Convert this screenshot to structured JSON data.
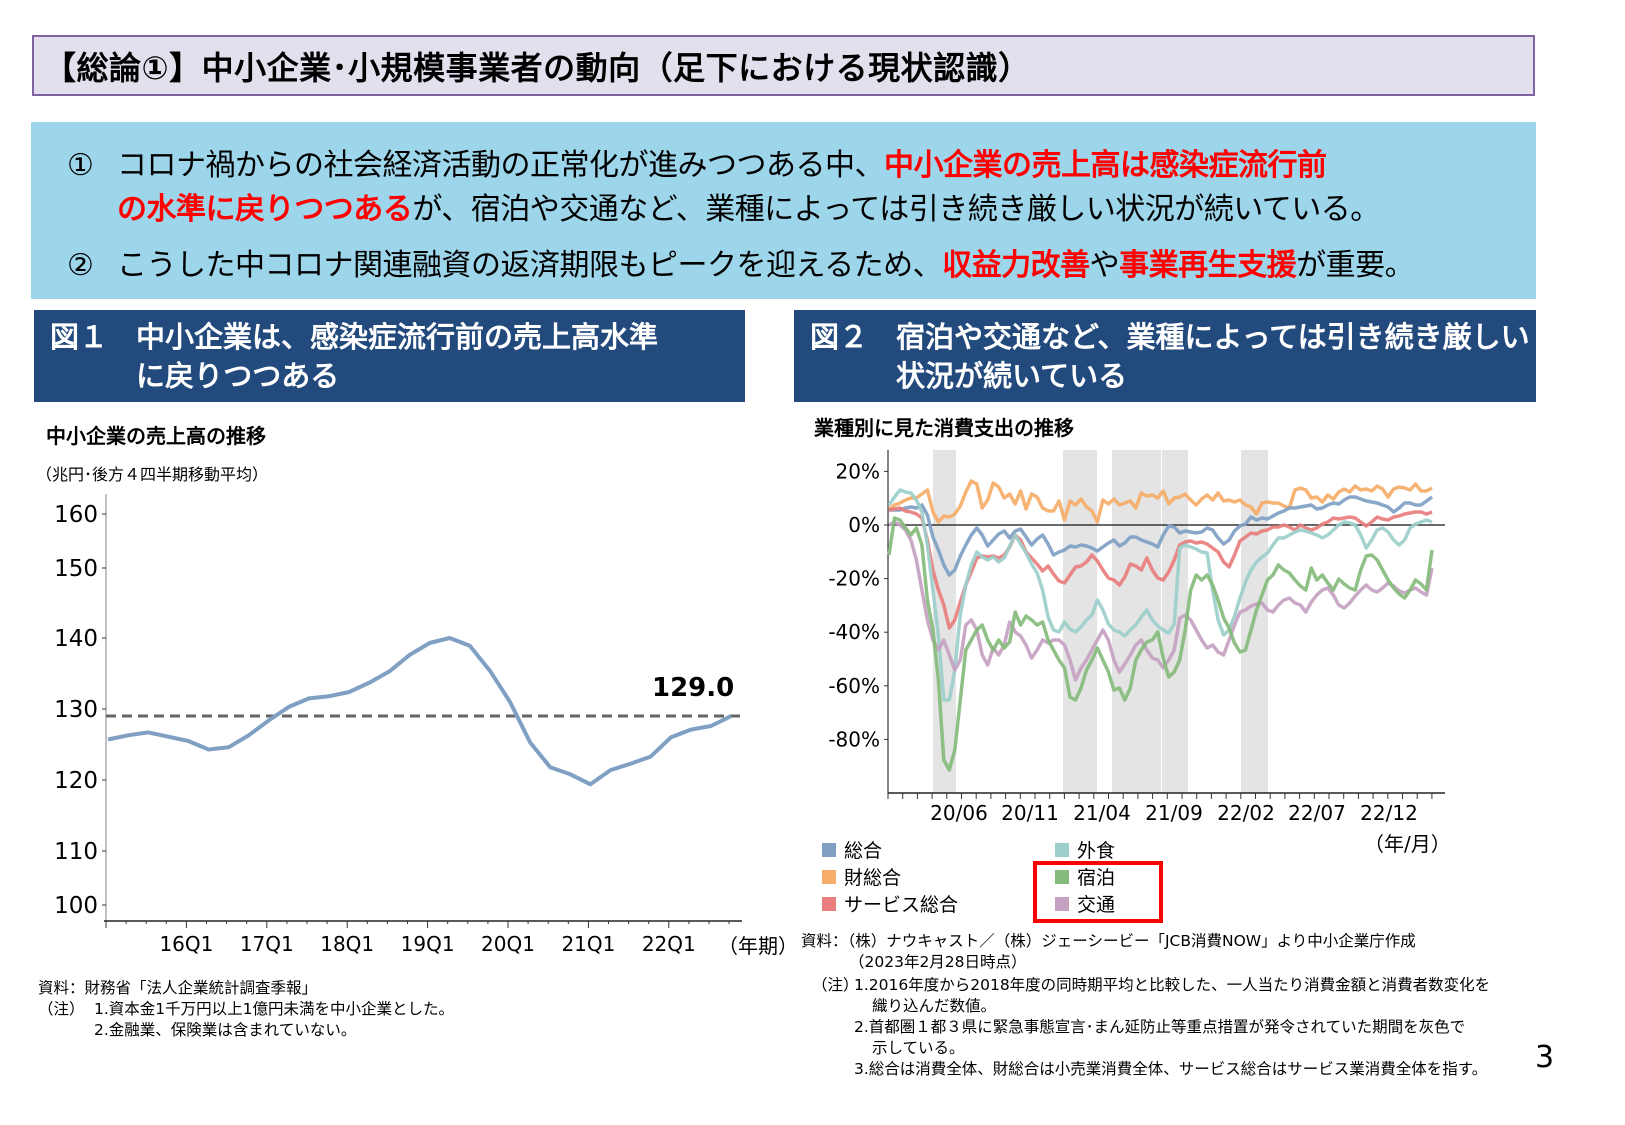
{
  "page": {
    "title": "【総論①】中小企業･小規模事業者の動向（足下における現状認識）",
    "page_number": "3"
  },
  "summary": {
    "item1_marker": "①",
    "item1_line1_plain": "コロナ禍からの社会経済活動の正常化が進みつつある中、",
    "item1_line1_red": "中小企業の売上高は感染症流行前",
    "item1_line2_red": "の水準に戻りつつある",
    "item1_line2_plain": "が、宿泊や交通など、業種によっては引き続き厳しい状況が続いている。",
    "item2_marker": "②",
    "item2_plain1": "こうした中コロナ関連融資の返済期限もピークを迎えるため、",
    "item2_red1": "収益力改善",
    "item2_plain2": "や",
    "item2_red2": "事業再生支援",
    "item2_plain3": "が重要。"
  },
  "figure1": {
    "number": "図１",
    "heading_line1": "中小企業は、感染症流行前の売上高水準",
    "heading_line2": "に戻りつつある",
    "chart_title": "中小企業の売上高の推移",
    "unit": "（兆円･後方４四半期移動平均）",
    "latest_label": "129.0",
    "x_unit": "（年期）",
    "source": "資料：財務省「法人企業統計調査季報」",
    "note_prefix": "（注）",
    "notes": [
      "1.資本金1千万円以上1億円未満を中小企業とした。",
      "2.金融業、保険業は含まれていない。"
    ]
  },
  "figure2": {
    "number": "図２",
    "heading_line1": "宿泊や交通など、業種によっては引き続き厳しい",
    "heading_line2": "状況が続いている",
    "chart_title": "業種別に見た消費支出の推移",
    "x_unit": "（年/月）",
    "legend": [
      {
        "label": "総合",
        "color": "#7f9fc3"
      },
      {
        "label": "財総合",
        "color": "#f5ad67"
      },
      {
        "label": "サービス総合",
        "color": "#e87e7e"
      },
      {
        "label": "外食",
        "color": "#9ccfcb"
      },
      {
        "label": "宿泊",
        "color": "#85bb7c"
      },
      {
        "label": "交通",
        "color": "#c6a2c2"
      }
    ],
    "highlight_box_color": "#ff0000",
    "source_line1": "資料：（株）ナウキャスト／（株）ジェーシービー「JCB消費NOW」より中小企業庁作成",
    "source_line2": "（2023年2月28日時点）",
    "note_prefix": "（注）",
    "notes": [
      "1.2016年度から2018年度の同時期平均と比較した、一人当たり消費金額と消費者数変化を",
      "織り込んだ数値。",
      "2.首都圏１都３県に緊急事態宣言･まん延防止等重点措置が発令されていた期間を灰色で",
      "示している。",
      "3.総合は消費全体、財総合は小売業消費全体、サービス総合はサービス業消費全体を指す。"
    ]
  },
  "chart_data": [
    {
      "type": "line",
      "title": "中小企業の売上高の推移",
      "ylabel": "兆円・後方４四半期移動平均",
      "xlabel": "年期",
      "ylim": [
        100,
        160
      ],
      "yticks": [
        100,
        110,
        120,
        130,
        140,
        150,
        160
      ],
      "xtick_labels": [
        "16Q1",
        "17Q1",
        "18Q1",
        "19Q1",
        "20Q1",
        "21Q1",
        "22Q1"
      ],
      "x": [
        "15Q1",
        "15Q2",
        "15Q3",
        "15Q4",
        "16Q1",
        "16Q2",
        "16Q3",
        "16Q4",
        "17Q1",
        "17Q2",
        "17Q3",
        "17Q4",
        "18Q1",
        "18Q2",
        "18Q3",
        "18Q4",
        "19Q1",
        "19Q2",
        "19Q3",
        "19Q4",
        "20Q1",
        "20Q2",
        "20Q3",
        "20Q4",
        "21Q1",
        "21Q2",
        "21Q3",
        "21Q4",
        "22Q1",
        "22Q2",
        "22Q3",
        "22Q4"
      ],
      "series": [
        {
          "name": "中小企業売上高",
          "color": "#7f9fc3",
          "values": [
            125.7,
            126.3,
            126.7,
            126.1,
            125.5,
            124.3,
            124.6,
            126.3,
            128.4,
            130.3,
            131.5,
            131.8,
            132.4,
            133.7,
            135.3,
            137.6,
            139.3,
            140.0,
            138.9,
            135.4,
            131.0,
            125.3,
            121.8,
            120.8,
            119.4,
            121.4,
            122.3,
            123.3,
            126.0,
            127.1,
            127.6,
            129.0
          ]
        },
        {
          "name": "基準線(129.0)",
          "style": "dashed",
          "color": "#666666",
          "values": "constant 129.0"
        }
      ],
      "annotations": [
        "129.0"
      ],
      "grid": false
    },
    {
      "type": "line",
      "title": "業種別に見た消費支出の推移",
      "ylabel": "%",
      "xlabel": "年/月",
      "ylim": [
        -100,
        27
      ],
      "yticks": [
        "20%",
        "0%",
        "-20%",
        "-40%",
        "-60%",
        "-80%"
      ],
      "xtick_labels": [
        "20/06",
        "20/11",
        "21/04",
        "21/09",
        "22/02",
        "22/07",
        "22/12"
      ],
      "shaded_periods": [
        "2020/04-2020/05",
        "2021/01-2021/03",
        "2021/04-2021/09",
        "2022/01-2022/03"
      ],
      "series": [
        {
          "name": "総合",
          "color": "#7f9fc3",
          "values_desc": "~+6% early 2020, dips to ~-20% in 2020/05, hovers -10%~0% through 2021, rises to ~+10% by 2023/02"
        },
        {
          "name": "財総合",
          "color": "#f5ad67",
          "values_desc": "mostly +5%~+17%, ends ~+15%"
        },
        {
          "name": "サービス総合",
          "color": "#e87e7e",
          "values_desc": "drops to ~-42% in 2020/05, ~-15~-25% in 2021, recovers to ~+6% by 2023/02"
        },
        {
          "name": "外食",
          "color": "#9ccfcb",
          "values_desc": "drops to ~-70% in 2020/05, -40~-45% in 2021 lows, recovers to ~+8%"
        },
        {
          "name": "宿泊",
          "color": "#85bb7c",
          "values_desc": "drops to ~-92% in 2020/05, lows ~-65% in 2021, ends ~-9%"
        },
        {
          "name": "交通",
          "color": "#c6a2c2",
          "values_desc": "drops to ~-68% in 2020/05, ~-50% lows in 2021/2022, ends ~-15%"
        }
      ],
      "grid": false,
      "legend_position": "bottom"
    }
  ]
}
